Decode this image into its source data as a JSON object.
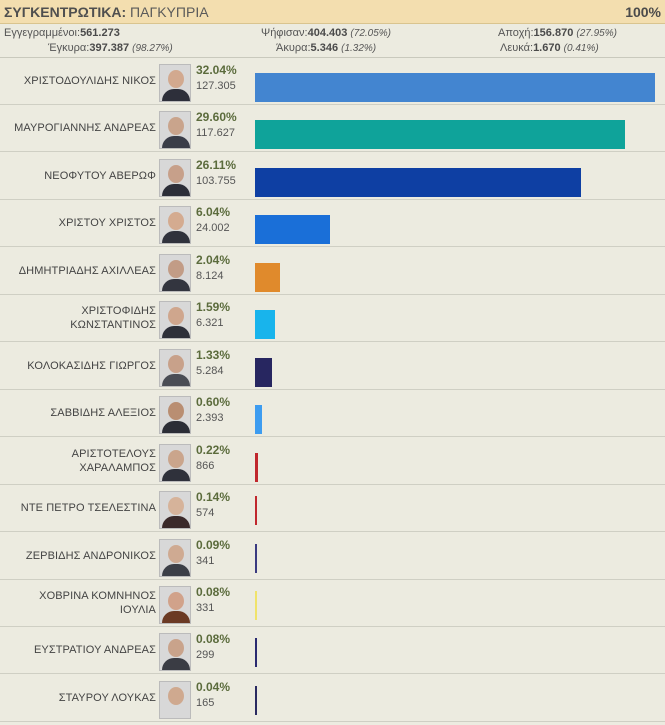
{
  "header": {
    "title_bold": "ΣΥΓΚΕΝΤΡΩΤΙΚΑ:",
    "title_rest": "ΠΑΓΚΥΠΡΙΑ",
    "progress": "100%"
  },
  "stats": {
    "registered_label": "Εγγεγραμμένοι:",
    "registered": "561.273",
    "voted_label": "Ψήφισαν:",
    "voted": "404.403",
    "voted_pct": "(72.05%)",
    "abstain_label": "Αποχή:",
    "abstain": "156.870",
    "abstain_pct": "(27.95%)",
    "valid_label": "Έγκυρα:",
    "valid": "397.387",
    "valid_pct": "(98.27%)",
    "invalid_label": "Άκυρα:",
    "invalid": "5.346",
    "invalid_pct": "(1.32%)",
    "blank_label": "Λευκά:",
    "blank": "1.670",
    "blank_pct": "(0.41%)"
  },
  "chart_data": {
    "type": "bar",
    "orientation": "horizontal",
    "xlim": [
      0,
      32.04
    ],
    "categories": [
      "ΧΡΙΣΤΟΔΟΥΛΙΔΗΣ ΝΙΚΟΣ",
      "ΜΑΥΡΟΓΙΑΝΝΗΣ ΑΝΔΡΕΑΣ",
      "ΝΕΟΦΥΤΟΥ ΑΒΕΡΩΦ",
      "ΧΡΙΣΤΟΥ ΧΡΙΣΤΟΣ",
      "ΔΗΜΗΤΡΙΑΔΗΣ ΑΧΙΛΛΕΑΣ",
      "ΧΡΙΣΤΟΦΙΔΗΣ ΚΩΝΣΤΑΝΤΙΝΟΣ",
      "ΚΟΛΟΚΑΣΙΔΗΣ ΓΙΩΡΓΟΣ",
      "ΣΑΒΒΙΔΗΣ ΑΛΕΞΙΟΣ",
      "ΑΡΙΣΤΟΤΕΛΟΥΣ ΧΑΡΑΛΑΜΠΟΣ",
      "ΝΤΕ ΠΕΤΡΟ ΤΣΕΛΕΣΤΙΝΑ",
      "ΖΕΡΒΙΔΗΣ ΑΝΔΡΟΝΙΚΟΣ",
      "ΧΟΒΡΙΝΑ ΚΟΜΝΗΝΟΣ ΙΟΥΛΙΑ",
      "ΕΥΣΤΡΑΤΙΟΥ ΑΝΔΡΕΑΣ",
      "ΣΤΑΥΡΟΥ ΛΟΥΚΑΣ"
    ],
    "values": [
      32.04,
      29.6,
      26.11,
      6.04,
      2.04,
      1.59,
      1.33,
      0.6,
      0.22,
      0.14,
      0.09,
      0.08,
      0.08,
      0.04
    ],
    "percent_labels": [
      "32.04%",
      "29.60%",
      "26.11%",
      "6.04%",
      "2.04%",
      "1.59%",
      "1.33%",
      "0.60%",
      "0.22%",
      "0.14%",
      "0.09%",
      "0.08%",
      "0.08%",
      "0.04%"
    ],
    "vote_labels": [
      "127.305",
      "117.627",
      "103.755",
      "24.002",
      "8.124",
      "6.321",
      "5.284",
      "2.393",
      "866",
      "574",
      "341",
      "331",
      "299",
      "165"
    ],
    "colors": [
      "#4385d0",
      "#0fa39a",
      "#0e3fa3",
      "#1a6fd8",
      "#e08a2c",
      "#18b4ec",
      "#272660",
      "#3d9cf0",
      "#c0272d",
      "#c0272d",
      "#3a3a80",
      "#f0e36a",
      "#2a2a70",
      "#2a2a60"
    ]
  }
}
